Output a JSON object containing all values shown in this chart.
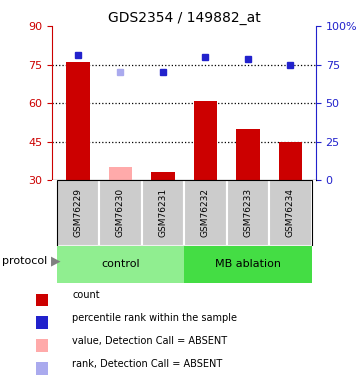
{
  "title": "GDS2354 / 149882_at",
  "samples": [
    "GSM76229",
    "GSM76230",
    "GSM76231",
    "GSM76232",
    "GSM76233",
    "GSM76234"
  ],
  "bar_values": [
    76,
    35,
    33,
    61,
    50,
    45
  ],
  "bar_colors": [
    "#cc0000",
    "#ffaaaa",
    "#cc0000",
    "#cc0000",
    "#cc0000",
    "#cc0000"
  ],
  "rank_values": [
    81,
    70,
    70,
    80,
    79,
    75
  ],
  "rank_colors": [
    "#2222cc",
    "#aaaaee",
    "#2222cc",
    "#2222cc",
    "#2222cc",
    "#2222cc"
  ],
  "ylim_left": [
    30,
    90
  ],
  "ylim_right": [
    0,
    100
  ],
  "yticks_left": [
    30,
    45,
    60,
    75,
    90
  ],
  "yticks_right": [
    0,
    25,
    50,
    75,
    100
  ],
  "ytick_labels_right": [
    "0",
    "25",
    "50",
    "75",
    "100%"
  ],
  "dotted_lines": [
    45,
    60,
    75
  ],
  "grp_bounds": [
    [
      -0.5,
      2.5,
      "#90ee90",
      "control"
    ],
    [
      2.5,
      5.5,
      "#44dd44",
      "MB ablation"
    ]
  ],
  "legend_items": [
    {
      "label": "count",
      "color": "#cc0000"
    },
    {
      "label": "percentile rank within the sample",
      "color": "#2222cc"
    },
    {
      "label": "value, Detection Call = ABSENT",
      "color": "#ffaaaa"
    },
    {
      "label": "rank, Detection Call = ABSENT",
      "color": "#aaaaee"
    }
  ],
  "protocol_label": "protocol",
  "left_tick_color": "#cc0000",
  "right_tick_color": "#2222cc",
  "bar_bottom": 30,
  "sample_bg_color": "#cccccc",
  "sample_edge_color": "#ffffff",
  "fig_bg_color": "#ffffff"
}
